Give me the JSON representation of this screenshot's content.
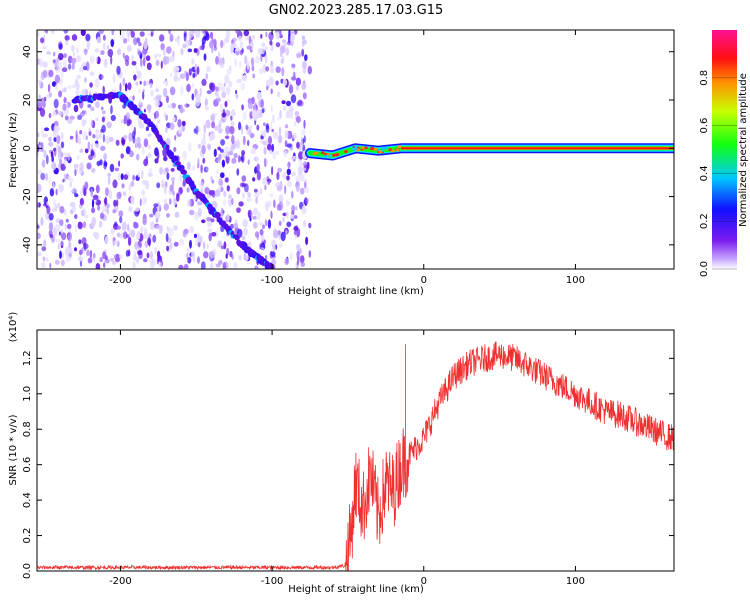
{
  "title": "GN02.2023.285.17.03.G15",
  "chart_data": [
    {
      "type": "heatmap",
      "title": "GN02.2023.285.17.03.G15",
      "xlabel": "Height of straight line (km)",
      "ylabel": "Frequency (Hz)",
      "xlim": [
        -255,
        165
      ],
      "ylim": [
        -50,
        49
      ],
      "xticks": [
        -200,
        -100,
        0,
        100
      ],
      "yticks": [
        -40,
        -20,
        0,
        20,
        40
      ],
      "grid": false,
      "colorbar": {
        "label": "Normalized spectral amplitude",
        "range": [
          0,
          1
        ],
        "ticks": [
          "0.0",
          "0.2",
          "0.4",
          "0.6",
          "0.8"
        ],
        "colors": [
          "#ffffff",
          "#7a1cf0",
          "#1010ff",
          "#00c8ff",
          "#10ff10",
          "#c8ff00",
          "#ff9000",
          "#ff1010",
          "#ff1090"
        ]
      },
      "noise_region_x": [
        -255,
        -75
      ],
      "diagonal_trace": {
        "x": [
          -230,
          -200,
          -180,
          -150,
          -120,
          -100
        ],
        "y": [
          20,
          22,
          10,
          -18,
          -40,
          -50
        ]
      },
      "carrier_trace": {
        "x": [
          -75,
          -60,
          -45,
          -30,
          -15,
          0,
          50,
          100,
          165
        ],
        "y": [
          -2,
          -3,
          0,
          -1,
          0,
          0,
          0,
          0,
          0
        ]
      }
    },
    {
      "type": "line",
      "xlabel": "Height of straight line (km)",
      "ylabel": "SNR (10 * v/v)",
      "y_multiplier": "(x10⁴)",
      "xlim": [
        -255,
        165
      ],
      "ylim": [
        0,
        1.36
      ],
      "xticks": [
        -200,
        -100,
        0,
        100
      ],
      "yticks": [
        "0.0",
        "0.2",
        "0.4",
        "0.6",
        "0.8",
        "1.0",
        "1.2"
      ],
      "grid": false,
      "series": [
        {
          "color": "#f03030",
          "x": [
            -255,
            -200,
            -150,
            -100,
            -60,
            -52,
            -48,
            -45,
            -40,
            -35,
            -30,
            -25,
            -20,
            -15,
            -10,
            0,
            10,
            20,
            30,
            40,
            50,
            60,
            70,
            80,
            90,
            100,
            110,
            120,
            130,
            140,
            150,
            160,
            165
          ],
          "y": [
            0.02,
            0.02,
            0.02,
            0.02,
            0.02,
            0.03,
            0.2,
            0.5,
            0.35,
            0.55,
            0.3,
            0.5,
            0.45,
            0.6,
            0.65,
            0.75,
            0.95,
            1.1,
            1.17,
            1.2,
            1.22,
            1.2,
            1.15,
            1.1,
            1.05,
            1.0,
            0.95,
            0.9,
            0.88,
            0.84,
            0.8,
            0.76,
            0.75
          ]
        }
      ]
    }
  ]
}
